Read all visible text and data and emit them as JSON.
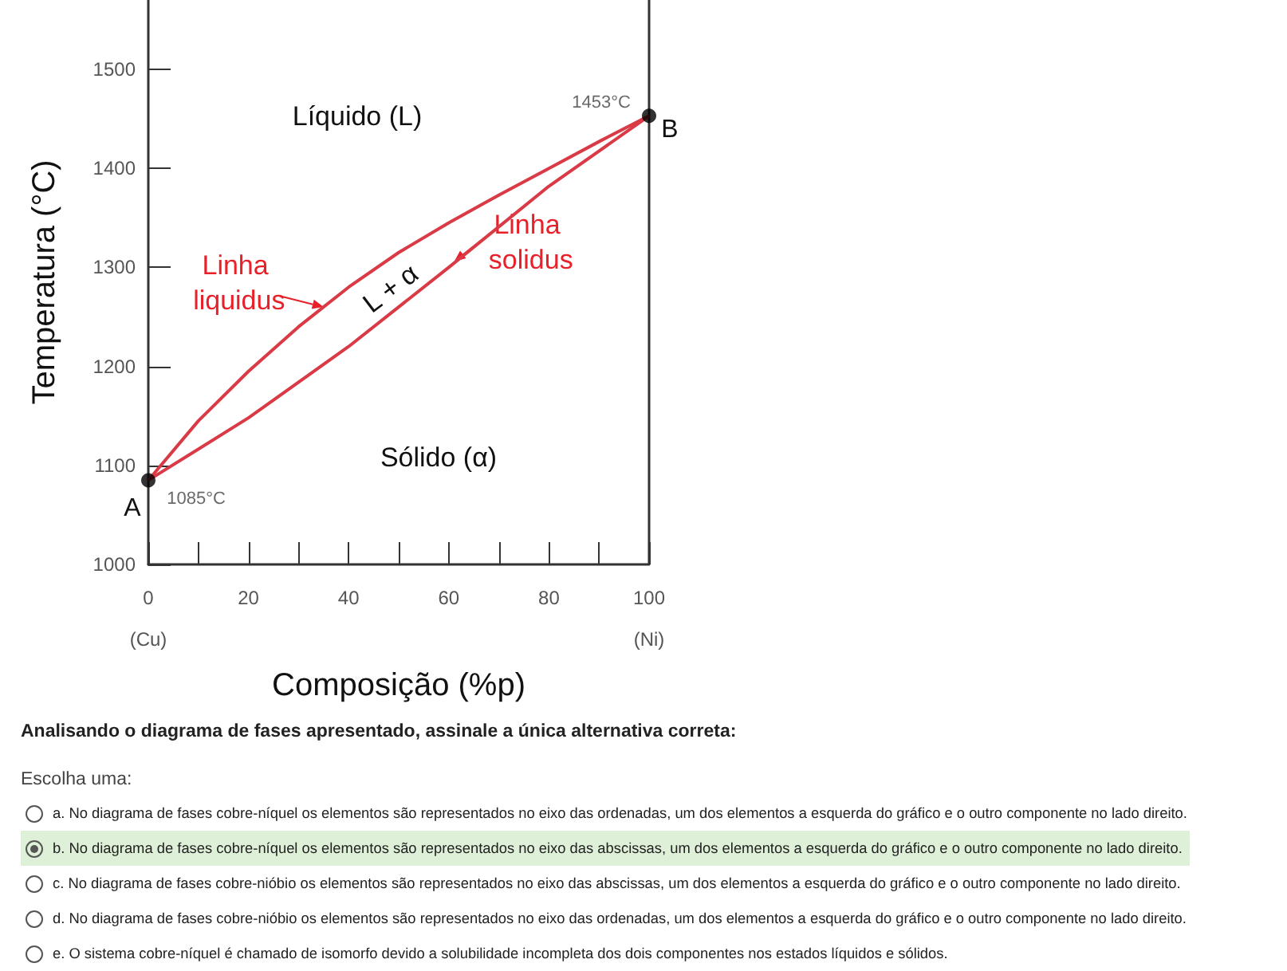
{
  "chart_data": {
    "type": "line",
    "xlabel": "Composição (%p)",
    "ylabel": "Temperatura (°C)",
    "xlim": [
      0,
      100
    ],
    "xticks": [
      {
        "value": 0,
        "label": "0\n(Cu)"
      },
      {
        "value": 10,
        "label": null
      },
      20,
      {
        "value": 30,
        "label": null
      },
      40,
      {
        "value": 50,
        "label": null
      },
      60,
      {
        "value": 70,
        "label": null
      },
      80,
      {
        "value": 90,
        "label": null
      },
      {
        "value": 100,
        "label": "100\n(Ni)"
      }
    ],
    "ylim": [
      1000,
      1570
    ],
    "yticks": [
      1000,
      1100,
      1200,
      1300,
      1400,
      1500
    ],
    "grid": false,
    "marker": "none",
    "series": [
      {
        "color": "#d93a45",
        "x": [
          0,
          10,
          20,
          30,
          40,
          50,
          60,
          70,
          80,
          90,
          100
        ],
        "values": [
          1085,
          1145,
          1195,
          1240,
          1280,
          1315,
          1345,
          1373,
          1400,
          1427,
          1453
        ]
      },
      {
        "color": "#d93a45",
        "x": [
          0,
          20,
          40,
          60,
          80,
          100
        ],
        "values": [
          1085,
          1148,
          1220,
          1300,
          1382,
          1453
        ]
      },
      {
        "type": "scatter",
        "marker": "circle",
        "color": "#000000",
        "x": [
          0,
          100
        ],
        "values": [
          1085,
          1453
        ],
        "value_labels": [
          "1085°C",
          "1453°C"
        ]
      }
    ],
    "annotations": [
      "Líquido (L)",
      "Sólido (α)",
      "L + α",
      {
        "text": "Linha liquidus",
        "x": 35,
        "y": 1260
      },
      {
        "text": "Linha solidus",
        "x": 61.1,
        "y": 1306
      },
      {
        "text": "A",
        "x": 0,
        "y": 1085
      },
      {
        "text": "B",
        "x": 100,
        "y": 1453
      },
      "Analisando o diagrama de fases apresentado, assinale a única alternativa correta:",
      "Escolha uma:",
      "a. No diagrama de fases cobre-níquel os elementos são representados no eixo das ordenadas, um dos elementos a esquerda do gráfico e o outro componente no lado direito.",
      "b. No diagrama de fases cobre-níquel os elementos são representados no eixo das abscissas, um dos elementos a esquerda do gráfico e o outro componente no lado direito.",
      "c. No diagrama de fases cobre-nióbio os elementos são representados no eixo das abscissas, um dos elementos a esquerda do gráfico e o outro componente no lado direito.",
      "d. No diagrama de fases cobre-nióbio os elementos são representados no eixo das ordenadas, um dos elementos a esquerda do gráfico e o outro componente no lado direito.",
      "e. O sistema cobre-níquel é chamado de isomorfo devido a solubilidade incompleta dos dois componentes nos estados líquidos e sólidos."
    ]
  }
}
